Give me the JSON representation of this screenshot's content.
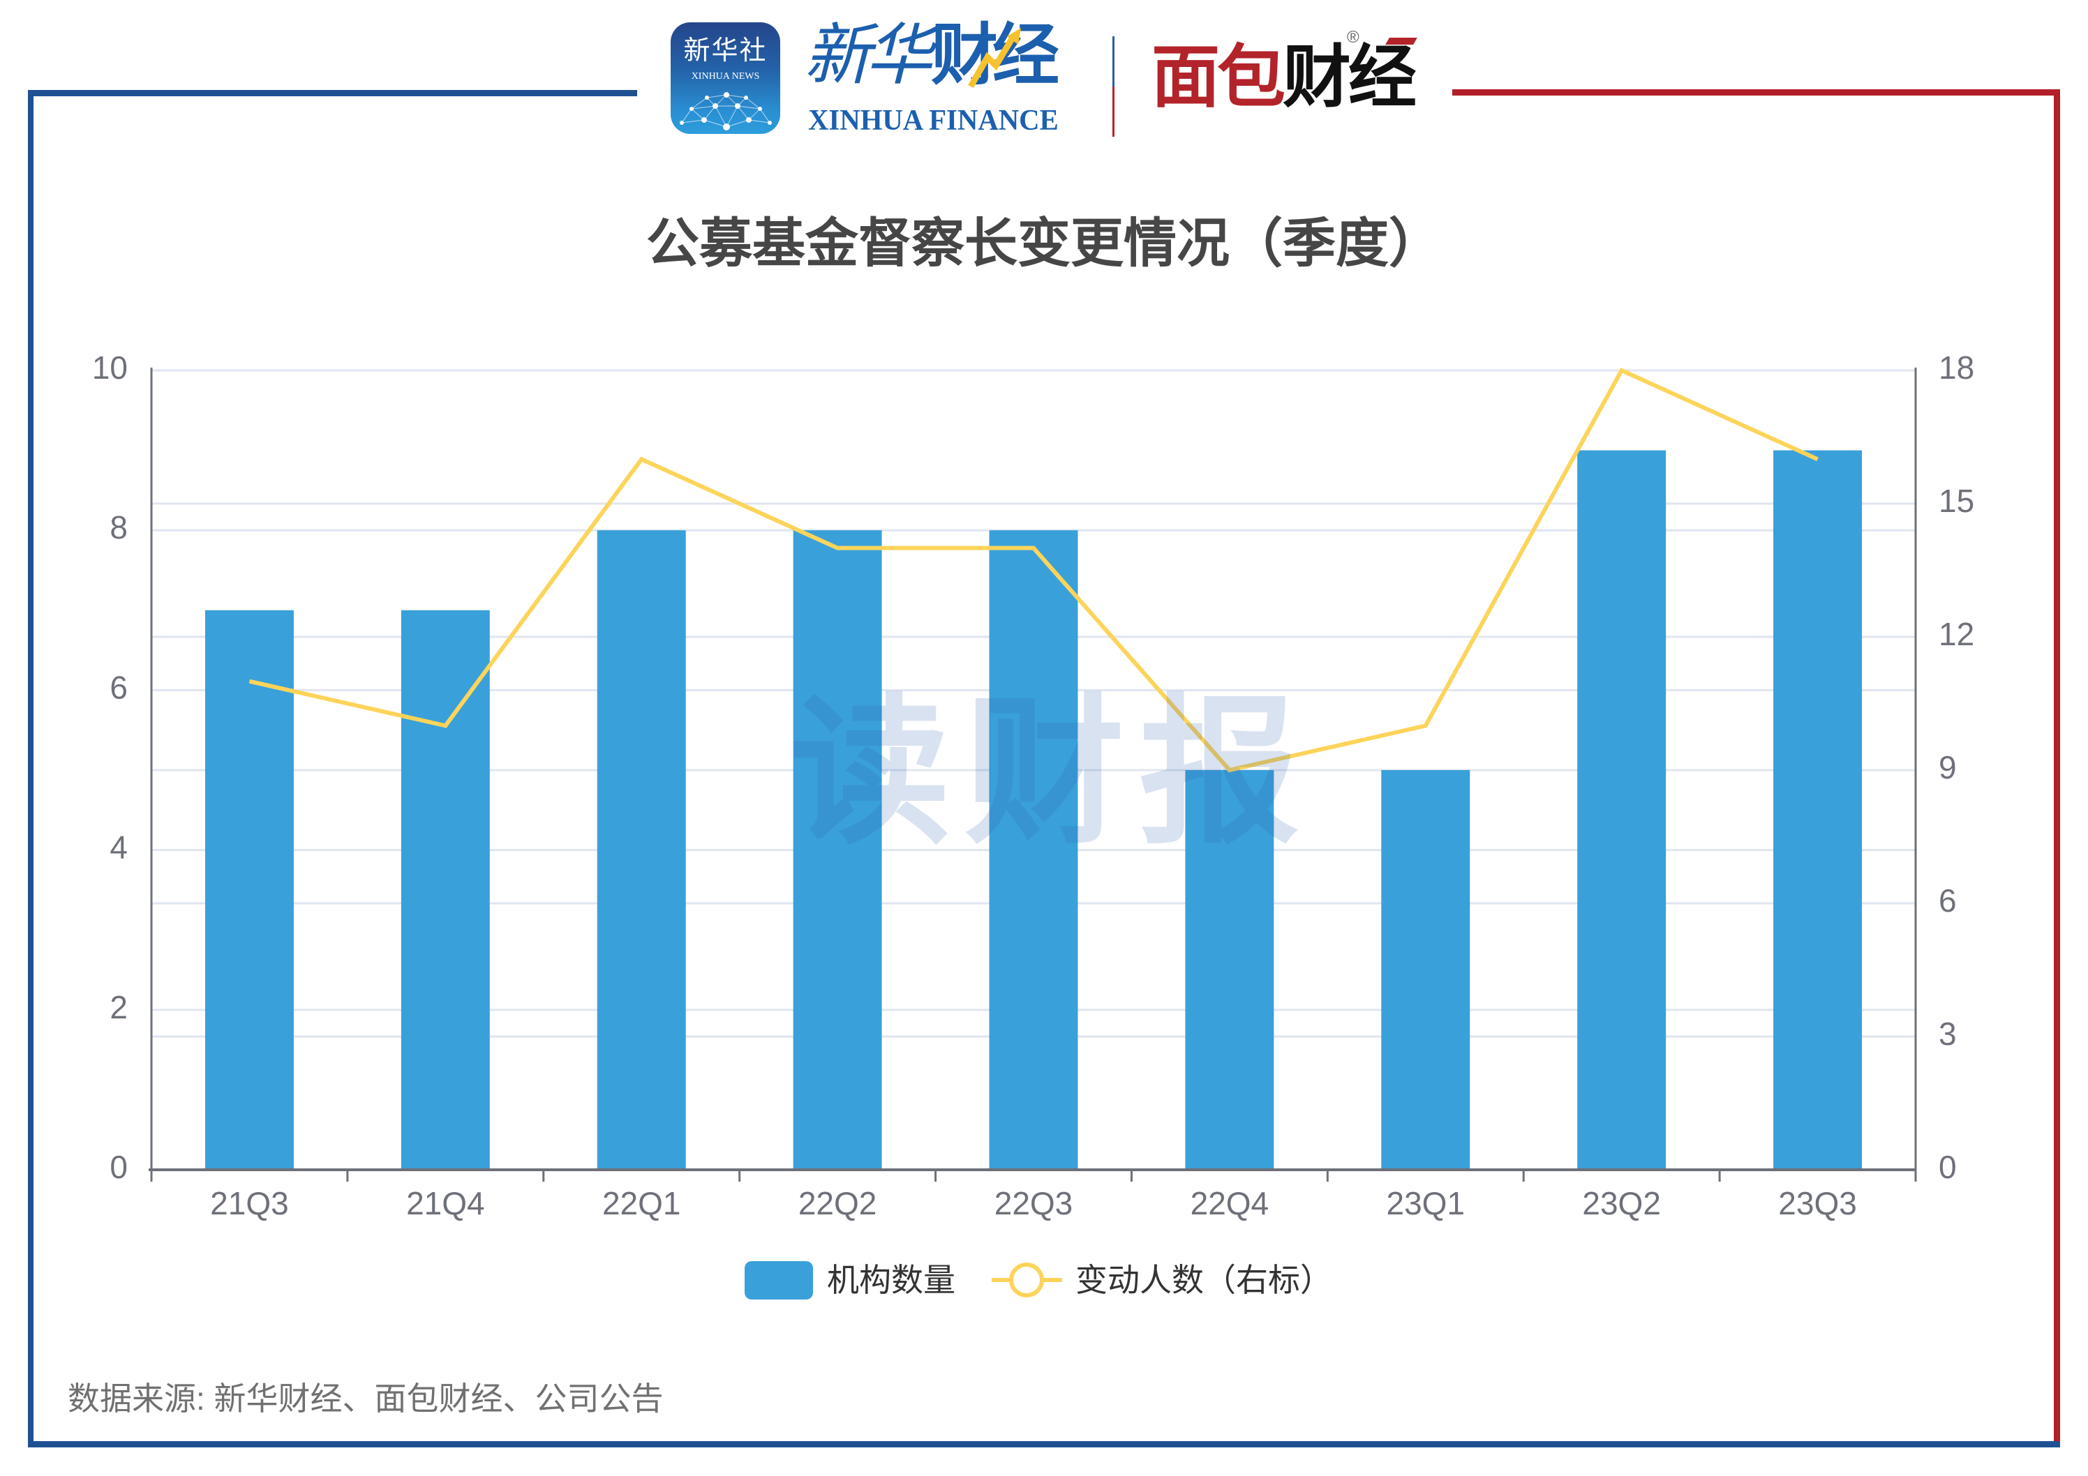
{
  "header": {
    "xinhua_news_logo": {
      "cn": "新华社",
      "en": "XINHUA NEWS"
    },
    "xinhua_finance_logo": {
      "cn_part1": "新华",
      "cn_part2": "财经",
      "en": "XINHUA FINANCE"
    },
    "mianbao_logo": {
      "red": "面包",
      "black": "财经",
      "trademark": "®"
    }
  },
  "chart": {
    "title": "公募基金督察长变更情况（季度）",
    "watermark": "读财报",
    "legend": [
      {
        "label": "机构数量",
        "icon": "bar-swatch-icon"
      },
      {
        "label": "变动人数（右标）",
        "icon": "line-circle-icon"
      }
    ],
    "source": "数据来源: 新华财经、面包财经、公司公告"
  },
  "colors": {
    "frame_blue": "#1f5192",
    "frame_red": "#b31f29",
    "grid": "#e0e6f1",
    "axis": "#6e7079",
    "axis_label": "#6e7079",
    "title": "#464646",
    "watermark": "#3262ae",
    "watermark_opacity": 0.185
  },
  "chart_data": {
    "type": "bar",
    "title": "公募基金督察长变更情况（季度）",
    "categories": [
      "21Q3",
      "21Q4",
      "22Q1",
      "22Q2",
      "22Q3",
      "22Q4",
      "23Q1",
      "23Q2",
      "23Q3"
    ],
    "series": [
      {
        "name": "机构数量",
        "type": "bar",
        "axis": "left",
        "color": "#3aa0da",
        "values": [
          7,
          7,
          8,
          8,
          8,
          5,
          5,
          9,
          9
        ]
      },
      {
        "name": "变动人数（右标）",
        "type": "line",
        "axis": "right",
        "color": "#fdd45a",
        "values": [
          11,
          10,
          16,
          14,
          14,
          9,
          10,
          18,
          16
        ]
      }
    ],
    "xlabel": "",
    "ylabel": "",
    "y_left": {
      "min": 0,
      "max": 10,
      "ticks": [
        0,
        2,
        4,
        6,
        8,
        10
      ]
    },
    "y_right": {
      "min": 0,
      "max": 18,
      "ticks": [
        0,
        3,
        6,
        9,
        12,
        15,
        18
      ]
    },
    "grid": true,
    "legend_position": "bottom",
    "source": "数据来源: 新华财经、面包财经、公司公告"
  }
}
